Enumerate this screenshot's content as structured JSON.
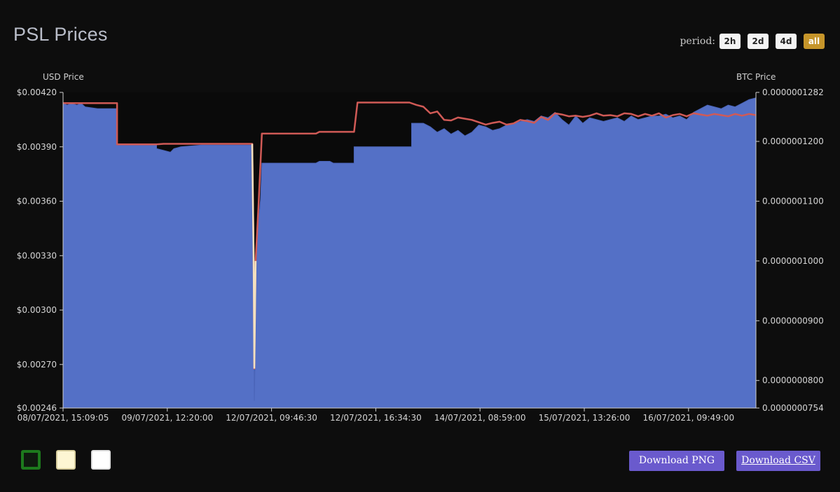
{
  "header": {
    "title": "PSL Prices"
  },
  "period": {
    "label": "period:",
    "options": [
      "2h",
      "2d",
      "4d",
      "all"
    ],
    "selected": "all",
    "active_color": "#c6952a"
  },
  "chart_data": {
    "type": "area+line",
    "left_axis_title": "USD Price",
    "right_axis_title": "BTC Price",
    "x_ticks": [
      "08/07/2021, 15:09:05",
      "09/07/2021, 12:20:00",
      "12/07/2021, 09:46:30",
      "12/07/2021, 16:34:30",
      "14/07/2021, 08:59:00",
      "15/07/2021, 13:26:00",
      "16/07/2021, 09:49:00"
    ],
    "x_range": [
      0,
      100
    ],
    "left_ticks": [
      "$0.00420",
      "$0.00390",
      "$0.00360",
      "$0.00330",
      "$0.00300",
      "$0.00270",
      "$0.00246"
    ],
    "left_tick_values": [
      0.0042,
      0.0039,
      0.0036,
      0.0033,
      0.003,
      0.0027,
      0.00246
    ],
    "left_range": [
      0.00246,
      0.0042
    ],
    "right_ticks": [
      "0.0000001282",
      "0.0000001200",
      "0.0000001100",
      "0.0000001000",
      "0.0000000900",
      "0.0000000800",
      "0.0000000754"
    ],
    "right_tick_values": [
      1.282e-07,
      1.2e-07,
      1.1e-07,
      1e-07,
      9e-08,
      8e-08,
      7.54e-08
    ],
    "right_range": [
      7.54e-08,
      1.282e-07
    ],
    "series": [
      {
        "name": "USD Price",
        "kind": "area",
        "color": "#5470c6",
        "points": [
          [
            0,
            0.00414
          ],
          [
            0.6,
            0.00413
          ],
          [
            1.2,
            0.00414
          ],
          [
            2,
            0.00413
          ],
          [
            2.6,
            0.00414
          ],
          [
            3.2,
            0.00412
          ],
          [
            5,
            0.00411
          ],
          [
            7.8,
            0.00411
          ],
          [
            7.8,
            0.00391
          ],
          [
            13.5,
            0.00391
          ],
          [
            13.5,
            0.00389
          ],
          [
            14.5,
            0.00388
          ],
          [
            15.5,
            0.00387
          ],
          [
            16,
            0.00389
          ],
          [
            17,
            0.0039
          ],
          [
            20,
            0.00391
          ],
          [
            27.3,
            0.00391
          ],
          [
            27.5,
            0.0033
          ],
          [
            27.6,
            0.0025
          ],
          [
            27.7,
            0.0027
          ],
          [
            28,
            0.0034
          ],
          [
            28.5,
            0.00361
          ],
          [
            28.7,
            0.00381
          ],
          [
            30,
            0.00381
          ],
          [
            34,
            0.00381
          ],
          [
            36.5,
            0.00381
          ],
          [
            37,
            0.00382
          ],
          [
            38.5,
            0.00382
          ],
          [
            39,
            0.00381
          ],
          [
            42,
            0.00381
          ],
          [
            42,
            0.0039
          ],
          [
            50.3,
            0.0039
          ],
          [
            50.3,
            0.00403
          ],
          [
            52,
            0.00403
          ],
          [
            53,
            0.00401
          ],
          [
            54,
            0.00398
          ],
          [
            55,
            0.004
          ],
          [
            56,
            0.00397
          ],
          [
            57,
            0.00399
          ],
          [
            58,
            0.00396
          ],
          [
            59,
            0.00398
          ],
          [
            60,
            0.00402
          ],
          [
            61,
            0.00401
          ],
          [
            62,
            0.00399
          ],
          [
            63,
            0.004
          ],
          [
            64,
            0.00402
          ],
          [
            65,
            0.00403
          ],
          [
            66,
            0.00404
          ],
          [
            67,
            0.00405
          ],
          [
            68,
            0.00404
          ],
          [
            69,
            0.00407
          ],
          [
            70,
            0.00406
          ],
          [
            71,
            0.00409
          ],
          [
            72,
            0.00405
          ],
          [
            73,
            0.00402
          ],
          [
            74,
            0.00407
          ],
          [
            75,
            0.00403
          ],
          [
            76,
            0.00406
          ],
          [
            77,
            0.00405
          ],
          [
            78,
            0.00404
          ],
          [
            79,
            0.00405
          ],
          [
            80,
            0.00406
          ],
          [
            81,
            0.00404
          ],
          [
            82,
            0.00407
          ],
          [
            83,
            0.00405
          ],
          [
            84,
            0.00406
          ],
          [
            85,
            0.00407
          ],
          [
            86,
            0.00407
          ],
          [
            87,
            0.00408
          ],
          [
            88,
            0.00406
          ],
          [
            89,
            0.00407
          ],
          [
            90,
            0.00405
          ],
          [
            91,
            0.00409
          ],
          [
            92,
            0.00411
          ],
          [
            93,
            0.00413
          ],
          [
            94,
            0.00412
          ],
          [
            95,
            0.00411
          ],
          [
            96,
            0.00413
          ],
          [
            97,
            0.00412
          ],
          [
            98,
            0.00414
          ],
          [
            99,
            0.00416
          ],
          [
            100,
            0.00417
          ]
        ]
      },
      {
        "name": "BTC Price",
        "kind": "line",
        "color": "#d05a56",
        "points": [
          [
            0,
            1.264e-07
          ],
          [
            7.8,
            1.264e-07
          ],
          [
            7.8,
            1.195e-07
          ],
          [
            13.5,
            1.195e-07
          ],
          [
            14.5,
            1.196e-07
          ],
          [
            27.3,
            1.196e-07
          ],
          [
            27.5,
            1.01e-07
          ],
          [
            27.6,
            8.2e-08
          ],
          [
            27.8,
            1e-07
          ],
          [
            28.2,
            1.09e-07
          ],
          [
            28.7,
            1.213e-07
          ],
          [
            36.5,
            1.213e-07
          ],
          [
            37,
            1.216e-07
          ],
          [
            42,
            1.216e-07
          ],
          [
            42.5,
            1.265e-07
          ],
          [
            50,
            1.265e-07
          ],
          [
            51,
            1.261e-07
          ],
          [
            52,
            1.258e-07
          ],
          [
            53,
            1.247e-07
          ],
          [
            54,
            1.25e-07
          ],
          [
            55,
            1.236e-07
          ],
          [
            56,
            1.235e-07
          ],
          [
            57,
            1.24e-07
          ],
          [
            58,
            1.238e-07
          ],
          [
            59,
            1.236e-07
          ],
          [
            60,
            1.232e-07
          ],
          [
            61,
            1.228e-07
          ],
          [
            62,
            1.231e-07
          ],
          [
            63,
            1.233e-07
          ],
          [
            64,
            1.228e-07
          ],
          [
            65,
            1.23e-07
          ],
          [
            66,
            1.236e-07
          ],
          [
            67,
            1.234e-07
          ],
          [
            68,
            1.231e-07
          ],
          [
            69,
            1.241e-07
          ],
          [
            70,
            1.236e-07
          ],
          [
            71,
            1.247e-07
          ],
          [
            72,
            1.245e-07
          ],
          [
            73,
            1.242e-07
          ],
          [
            74,
            1.243e-07
          ],
          [
            75,
            1.241e-07
          ],
          [
            76,
            1.243e-07
          ],
          [
            77,
            1.247e-07
          ],
          [
            78,
            1.243e-07
          ],
          [
            79,
            1.244e-07
          ],
          [
            80,
            1.242e-07
          ],
          [
            81,
            1.247e-07
          ],
          [
            82,
            1.246e-07
          ],
          [
            83,
            1.242e-07
          ],
          [
            84,
            1.246e-07
          ],
          [
            85,
            1.243e-07
          ],
          [
            86,
            1.247e-07
          ],
          [
            87,
            1.24e-07
          ],
          [
            88,
            1.244e-07
          ],
          [
            89,
            1.246e-07
          ],
          [
            90,
            1.242e-07
          ],
          [
            91,
            1.247e-07
          ],
          [
            92,
            1.245e-07
          ],
          [
            93,
            1.243e-07
          ],
          [
            94,
            1.246e-07
          ],
          [
            95,
            1.244e-07
          ],
          [
            96,
            1.242e-07
          ],
          [
            97,
            1.246e-07
          ],
          [
            98,
            1.243e-07
          ],
          [
            99,
            1.246e-07
          ],
          [
            100,
            1.244e-07
          ]
        ]
      }
    ],
    "grid": false
  },
  "swatches": [
    {
      "name": "dark-green",
      "color": "#0f1a0f",
      "border": "#1d7a1d"
    },
    {
      "name": "cream",
      "color": "#fdf6d3",
      "border": "#d9cf9e"
    },
    {
      "name": "white",
      "color": "#ffffff",
      "border": "#e0e0e0"
    }
  ],
  "actions": {
    "download_png": "Download PNG",
    "download_csv": "Download CSV"
  }
}
